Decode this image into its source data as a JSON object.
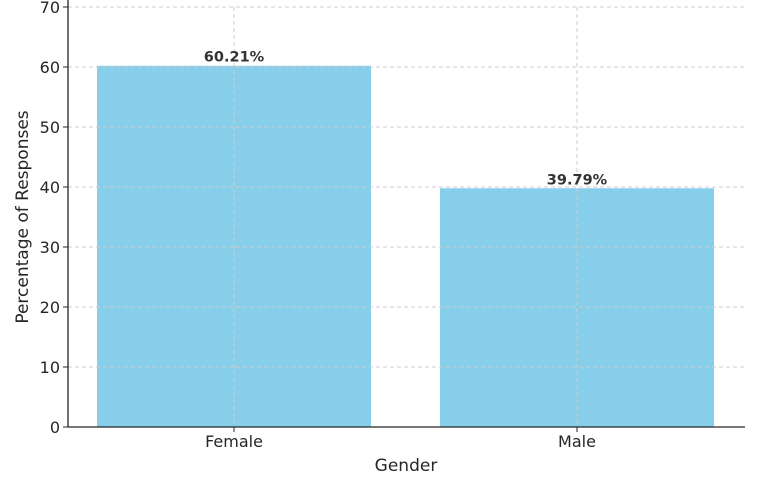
{
  "chart_data": {
    "type": "bar",
    "title": "",
    "xlabel": "Gender",
    "ylabel": "Percentage of Responses",
    "categories": [
      "Female",
      "Male"
    ],
    "values": [
      60.21,
      39.79
    ],
    "data_labels": [
      "60.21%",
      "39.79%"
    ],
    "ylim": [
      0,
      70
    ],
    "yticks": [
      0,
      10,
      20,
      30,
      40,
      50,
      60,
      70
    ],
    "grid": true,
    "bar_color": "#87ceeb",
    "grid_color": "#cccccc",
    "axis_color": "#262626"
  }
}
